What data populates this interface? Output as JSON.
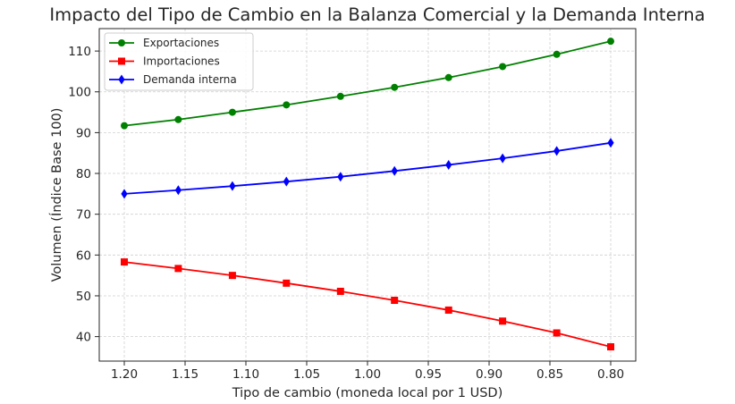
{
  "chart_data": {
    "type": "line",
    "title": "Impacto del Tipo de Cambio en la Balanza Comercial y la Demanda Interna",
    "xlabel": "Tipo de cambio (moneda local por 1 USD)",
    "ylabel": "Volumen (Índice Base 100)",
    "x_reversed": true,
    "xlim": [
      1.2,
      0.8
    ],
    "ylim": [
      34,
      115.5
    ],
    "grid": true,
    "legend_position": "top-left",
    "x_ticks": [
      1.2,
      1.15,
      1.1,
      1.05,
      1.0,
      0.95,
      0.9,
      0.85,
      0.8
    ],
    "x_tick_labels": [
      "1.20",
      "1.15",
      "1.10",
      "1.05",
      "1.00",
      "0.95",
      "0.90",
      "0.85",
      "0.80"
    ],
    "y_ticks": [
      40,
      50,
      60,
      70,
      80,
      90,
      100,
      110
    ],
    "y_tick_labels": [
      "40",
      "50",
      "60",
      "70",
      "80",
      "90",
      "100",
      "110"
    ],
    "x": [
      1.2,
      1.1556,
      1.1111,
      1.0667,
      1.0222,
      0.9778,
      0.9333,
      0.8889,
      0.8444,
      0.8
    ],
    "series": [
      {
        "name": "Exportaciones",
        "color": "#008000",
        "marker": "circle",
        "values": [
          91.7,
          93.2,
          95.0,
          96.8,
          98.9,
          101.1,
          103.5,
          106.2,
          109.2,
          112.4
        ]
      },
      {
        "name": "Importaciones",
        "color": "#ff0000",
        "marker": "square",
        "values": [
          58.3,
          56.7,
          55.0,
          53.1,
          51.1,
          48.9,
          46.5,
          43.8,
          40.9,
          37.5
        ]
      },
      {
        "name": "Demanda interna",
        "color": "#0000ff",
        "marker": "diamond",
        "values": [
          75.0,
          75.9,
          76.9,
          78.0,
          79.2,
          80.6,
          82.1,
          83.7,
          85.5,
          87.5
        ]
      }
    ]
  }
}
